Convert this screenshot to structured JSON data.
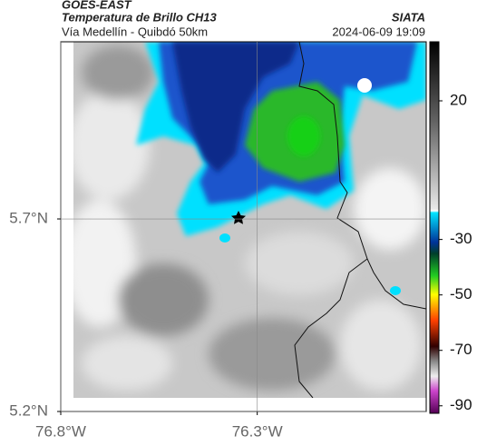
{
  "chart_data": {
    "type": "map",
    "title": "GOES-EAST",
    "subtitle": "Temperatura de Brillo CH13",
    "caption": "Vía Medellín - Quibdó 50km",
    "source": "SIATA",
    "timestamp": "2024-06-09 19:09",
    "xlim": [
      -76.8,
      -75.87
    ],
    "ylim": [
      5.2,
      6.16
    ],
    "xticks": [
      {
        "value": -76.8,
        "label": "76.8°W"
      },
      {
        "value": -76.3,
        "label": "76.3°W"
      }
    ],
    "yticks": [
      {
        "value": 5.2,
        "label": "5.2°N"
      },
      {
        "value": 5.7,
        "label": "5.7°N"
      }
    ],
    "grid": true,
    "colorbar": {
      "lim": [
        -92.7,
        41.3
      ],
      "ticks": [
        20,
        -30,
        -50,
        -70,
        -90
      ]
    }
  }
}
